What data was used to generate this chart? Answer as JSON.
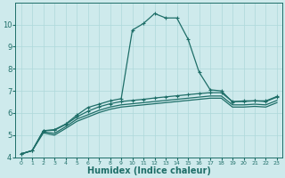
{
  "xlabel": "Humidex (Indice chaleur)",
  "background_color": "#ceeaec",
  "grid_color": "#add8da",
  "line_color": "#1e6e68",
  "x_values": [
    0,
    1,
    2,
    3,
    4,
    5,
    6,
    7,
    8,
    9,
    10,
    11,
    12,
    13,
    14,
    15,
    16,
    17,
    18,
    19,
    20,
    21,
    22,
    23
  ],
  "line1_y": [
    4.15,
    4.3,
    5.2,
    5.25,
    5.5,
    5.9,
    6.25,
    6.4,
    6.55,
    6.65,
    9.75,
    10.05,
    10.5,
    10.3,
    10.3,
    9.35,
    7.85,
    7.05,
    7.0,
    6.5,
    6.55,
    6.55,
    6.55,
    6.75
  ],
  "line2_y": [
    4.15,
    4.3,
    5.2,
    5.22,
    5.48,
    5.82,
    6.08,
    6.28,
    6.42,
    6.52,
    6.57,
    6.62,
    6.68,
    6.73,
    6.78,
    6.83,
    6.88,
    6.92,
    6.92,
    6.52,
    6.52,
    6.55,
    6.52,
    6.72
  ],
  "line3_y": [
    4.15,
    4.3,
    5.15,
    5.08,
    5.38,
    5.72,
    5.92,
    6.12,
    6.27,
    6.37,
    6.42,
    6.47,
    6.52,
    6.57,
    6.62,
    6.67,
    6.72,
    6.77,
    6.77,
    6.37,
    6.37,
    6.4,
    6.37,
    6.57
  ],
  "line4_y": [
    4.15,
    4.3,
    5.1,
    5.0,
    5.3,
    5.62,
    5.82,
    6.02,
    6.17,
    6.27,
    6.32,
    6.37,
    6.42,
    6.47,
    6.52,
    6.57,
    6.62,
    6.67,
    6.67,
    6.27,
    6.27,
    6.3,
    6.27,
    6.47
  ],
  "ylim": [
    4,
    11
  ],
  "xlim": [
    -0.5,
    23.5
  ],
  "yticks": [
    4,
    5,
    6,
    7,
    8,
    9,
    10
  ],
  "xtick_labels": [
    "0",
    "1",
    "2",
    "3",
    "4",
    "5",
    "6",
    "7",
    "8",
    "9",
    "10",
    "11",
    "12",
    "13",
    "14",
    "15",
    "16",
    "17",
    "18",
    "19",
    "20",
    "21",
    "22",
    "23"
  ]
}
